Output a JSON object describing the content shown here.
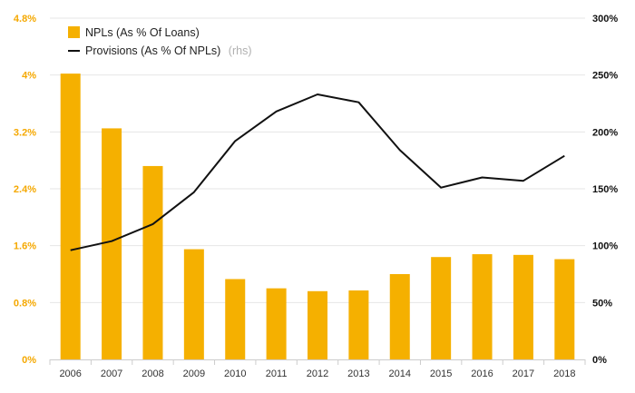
{
  "chart_data": {
    "type": "bar",
    "categories": [
      "2006",
      "2007",
      "2008",
      "2009",
      "2010",
      "2011",
      "2012",
      "2013",
      "2014",
      "2015",
      "2016",
      "2017",
      "2018"
    ],
    "series": [
      {
        "name": "NPLs (As % Of Loans)",
        "type": "bar",
        "axis": "left",
        "color": "#f5b000",
        "values": [
          4.02,
          3.25,
          2.72,
          1.55,
          1.13,
          1.0,
          0.96,
          0.97,
          1.2,
          1.44,
          1.48,
          1.47,
          1.41
        ]
      },
      {
        "name": "Provisions (As % Of NPLs)",
        "name_suffix": "(rhs)",
        "type": "line",
        "axis": "right",
        "color": "#111111",
        "values": [
          96,
          104,
          119,
          147,
          192,
          218,
          233,
          226,
          184,
          151,
          160,
          157,
          179
        ]
      }
    ],
    "y_left": {
      "min": 0,
      "max": 4.8,
      "ticks": [
        0,
        0.8,
        1.6,
        2.4,
        3.2,
        4,
        4.8
      ],
      "tick_labels": [
        "0%",
        "0.8%",
        "1.6%",
        "2.4%",
        "3.2%",
        "4%",
        "4.8%"
      ],
      "color": "#f5a800"
    },
    "y_right": {
      "min": 0,
      "max": 300,
      "ticks": [
        0,
        50,
        100,
        150,
        200,
        250,
        300
      ],
      "tick_labels": [
        "0%",
        "50%",
        "100%",
        "150%",
        "200%",
        "250%",
        "300%"
      ],
      "color": "#111111"
    },
    "grid": true,
    "legend_position": "top-left"
  }
}
